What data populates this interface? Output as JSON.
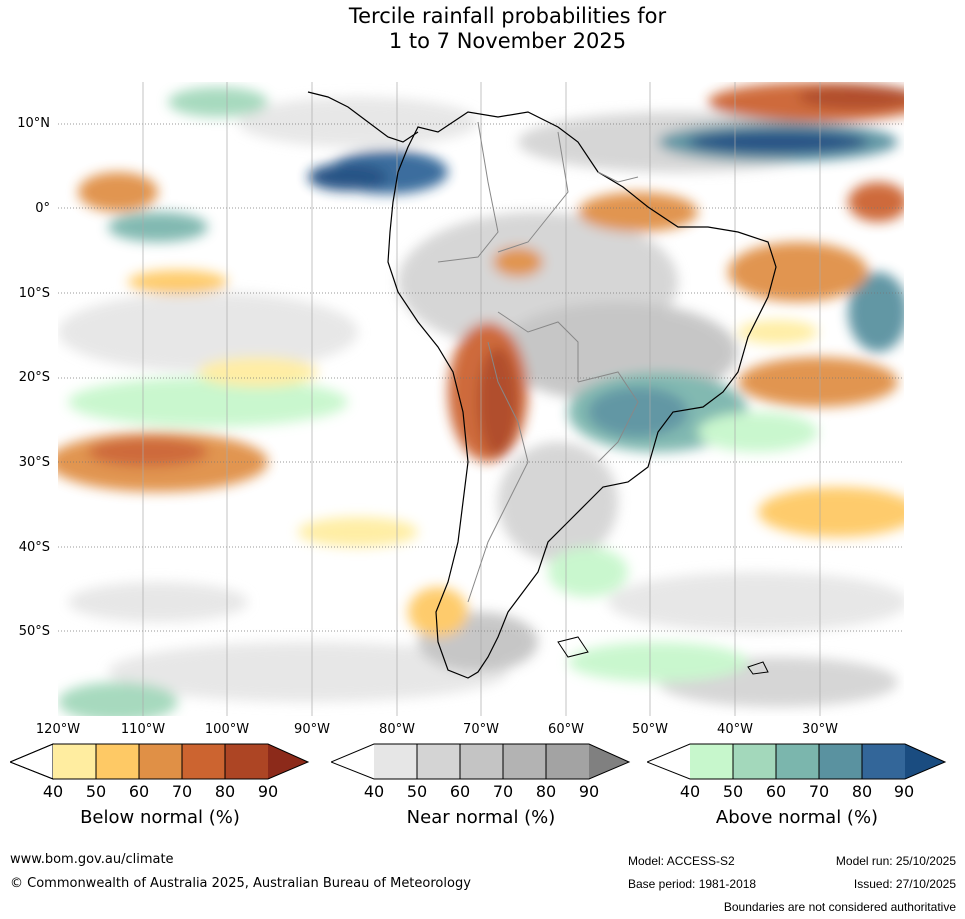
{
  "title_line1": "Tercile rainfall probabilities for",
  "title_line2": "1 to 7 November 2025",
  "lat_labels": [
    "10°N",
    "0°",
    "10°S",
    "20°S",
    "30°S",
    "40°S",
    "50°S"
  ],
  "lon_labels": [
    "120°W",
    "110°W",
    "100°W",
    "90°W",
    "80°W",
    "70°W",
    "60°W",
    "50°W",
    "40°W",
    "30°W"
  ],
  "colorbars": [
    {
      "title": "Below normal (%)",
      "ticks": [
        "40",
        "50",
        "60",
        "70",
        "80",
        "90"
      ],
      "colors": [
        "#ffffff",
        "#ffeda0",
        "#fec965",
        "#e09046",
        "#cc6430",
        "#ad4524",
        "#8c2a1a"
      ]
    },
    {
      "title": "Near normal (%)",
      "ticks": [
        "40",
        "50",
        "60",
        "70",
        "80",
        "90"
      ],
      "colors": [
        "#ffffff",
        "#e6e6e6",
        "#d4d4d4",
        "#c4c4c4",
        "#b3b3b3",
        "#a3a3a3",
        "#808080"
      ]
    },
    {
      "title": "Above normal (%)",
      "ticks": [
        "40",
        "50",
        "60",
        "70",
        "80",
        "90"
      ],
      "colors": [
        "#ffffff",
        "#c7f7cc",
        "#a3d8bb",
        "#7bb6ad",
        "#5a92a0",
        "#336699",
        "#1a4c80"
      ]
    }
  ],
  "footer": {
    "url": "www.bom.gov.au/climate",
    "copyright": "© Commonwealth of Australia 2025, Australian Bureau of Meteorology",
    "model": "Model: ACCESS-S2",
    "base_period": "Base period: 1981-2018",
    "model_run": "Model run: 25/10/2025",
    "issued": "Issued: 27/10/2025",
    "disclaimer": "Boundaries are not considered authoritative"
  }
}
